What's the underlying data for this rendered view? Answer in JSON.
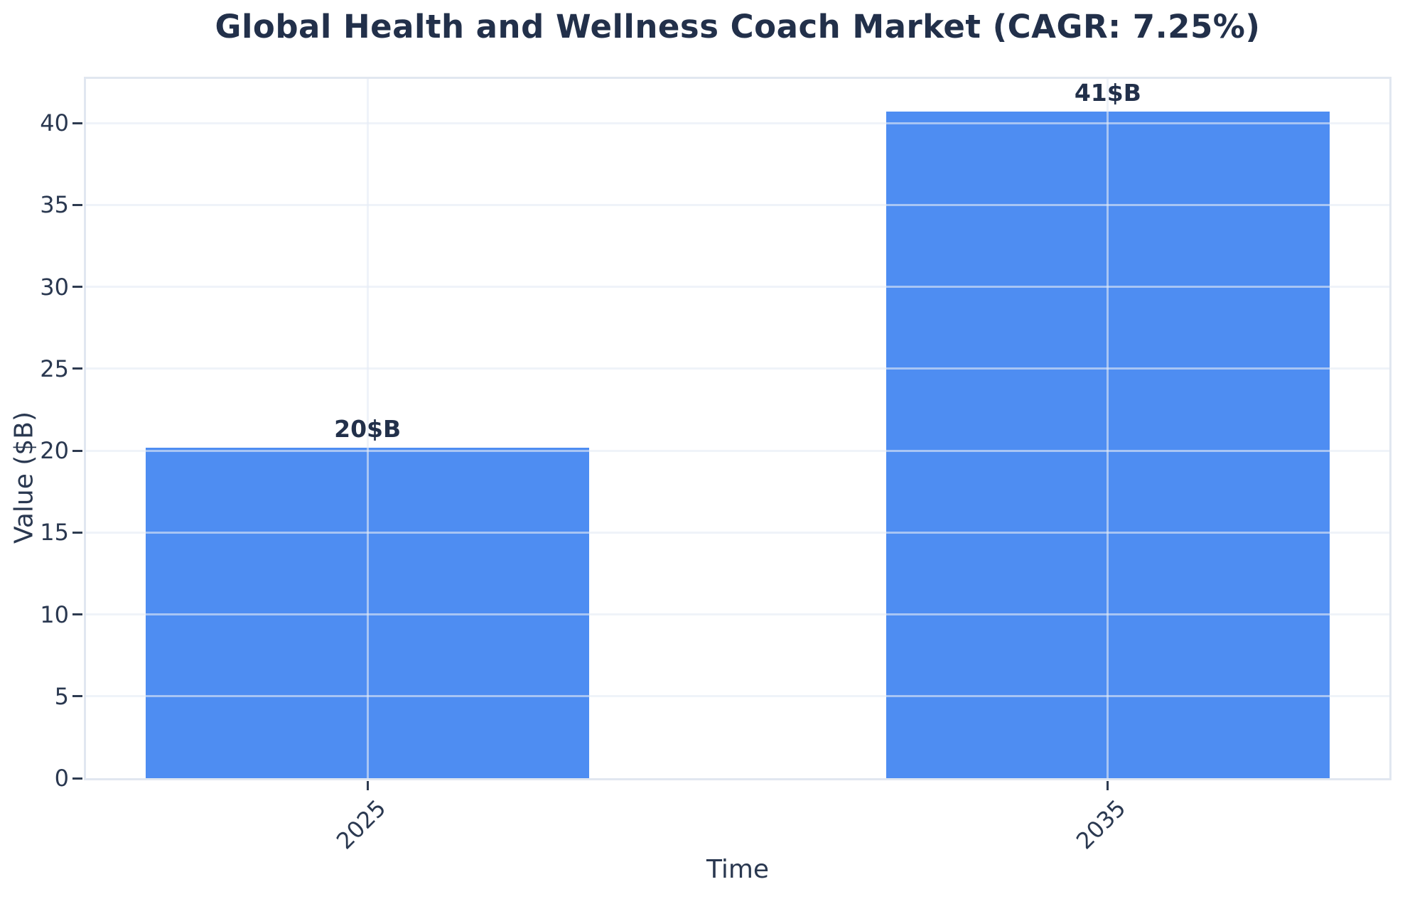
{
  "chart_data": {
    "type": "bar",
    "title": "Global Health and Wellness Coach Market (CAGR: 7.25%)",
    "xlabel": "Time",
    "ylabel": "Value ($B)",
    "categories": [
      "2025",
      "2035"
    ],
    "values": [
      20.2,
      40.7
    ],
    "bar_labels": [
      "20$B",
      "41$B"
    ],
    "cagr_percent": 7.25,
    "yticks": [
      0,
      5,
      10,
      15,
      20,
      25,
      30,
      35,
      40
    ],
    "ylim": [
      0,
      42.7
    ],
    "x_tick_rotation_deg": 45,
    "grid": true,
    "legend": false,
    "colors": {
      "bar": "#4e8df2",
      "title_text": "#22304a",
      "tick_text": "#2a3850",
      "spine": "#e1e7f0",
      "background": "#ffffff"
    }
  }
}
